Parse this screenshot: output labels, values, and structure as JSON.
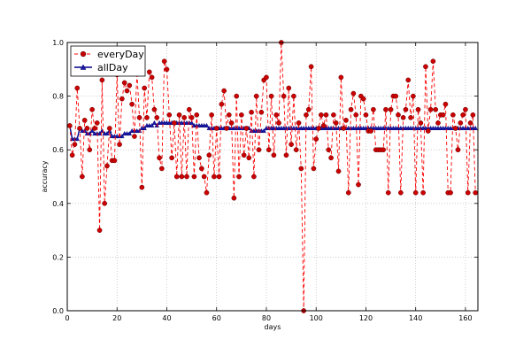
{
  "chart_data": {
    "type": "line",
    "title": "",
    "xlabel": "days",
    "ylabel": "accuracy",
    "xlim": [
      0,
      165
    ],
    "ylim": [
      0.0,
      1.0
    ],
    "xticks": [
      0,
      20,
      40,
      60,
      80,
      100,
      120,
      140,
      160
    ],
    "yticks": [
      0.0,
      0.2,
      0.4,
      0.6,
      0.8,
      1.0
    ],
    "xtick_labels": [
      "0",
      "20",
      "40",
      "60",
      "80",
      "100",
      "120",
      "140",
      "160"
    ],
    "ytick_labels": [
      "0.0",
      "0.2",
      "0.4",
      "0.6",
      "0.8",
      "1.0"
    ],
    "grid": true,
    "legend_position": "top-left",
    "series": [
      {
        "name": "everyDay",
        "color": "#ff0000",
        "marker": "circle",
        "line_style": "dashed",
        "x": [
          1,
          2,
          3,
          4,
          5,
          6,
          7,
          8,
          9,
          10,
          11,
          12,
          13,
          14,
          15,
          16,
          17,
          18,
          19,
          20,
          21,
          22,
          23,
          24,
          25,
          26,
          27,
          28,
          29,
          30,
          31,
          32,
          33,
          34,
          35,
          36,
          37,
          38,
          39,
          40,
          41,
          42,
          43,
          44,
          45,
          46,
          47,
          48,
          49,
          50,
          51,
          52,
          53,
          54,
          55,
          56,
          57,
          58,
          59,
          60,
          61,
          62,
          63,
          64,
          65,
          66,
          67,
          68,
          69,
          70,
          71,
          72,
          73,
          74,
          75,
          76,
          77,
          78,
          79,
          80,
          81,
          82,
          83,
          84,
          85,
          86,
          87,
          88,
          89,
          90,
          91,
          92,
          93,
          94,
          95,
          96,
          97,
          98,
          99,
          100,
          101,
          102,
          103,
          104,
          105,
          106,
          107,
          108,
          109,
          110,
          111,
          112,
          113,
          114,
          115,
          116,
          117,
          118,
          119,
          120,
          121,
          122,
          123,
          124,
          125,
          126,
          127,
          128,
          129,
          130,
          131,
          132,
          133,
          134,
          135,
          136,
          137,
          138,
          139,
          140,
          141,
          142,
          143,
          144,
          145,
          146,
          147,
          148,
          149,
          150,
          151,
          152,
          153,
          154,
          155,
          156,
          157,
          158,
          159,
          160,
          161,
          162,
          163,
          164
        ],
        "y": [
          0.69,
          0.58,
          0.62,
          0.83,
          0.68,
          0.5,
          0.71,
          0.68,
          0.6,
          0.75,
          0.68,
          0.7,
          0.3,
          0.86,
          0.4,
          0.54,
          0.68,
          0.56,
          0.56,
          0.88,
          0.62,
          0.79,
          0.85,
          0.82,
          0.84,
          0.77,
          0.65,
          0.89,
          0.72,
          0.46,
          0.83,
          0.72,
          0.89,
          0.87,
          0.75,
          0.72,
          0.57,
          0.53,
          0.93,
          0.9,
          0.73,
          0.57,
          0.7,
          0.5,
          0.73,
          0.5,
          0.72,
          0.5,
          0.75,
          0.72,
          0.5,
          0.73,
          0.57,
          0.53,
          0.5,
          0.44,
          0.58,
          0.73,
          0.5,
          0.68,
          0.5,
          0.77,
          0.82,
          0.68,
          0.73,
          0.7,
          0.42,
          0.8,
          0.5,
          0.73,
          0.58,
          0.68,
          0.57,
          0.74,
          0.5,
          0.8,
          0.6,
          0.74,
          0.86,
          0.87,
          0.6,
          0.8,
          0.58,
          0.73,
          0.7,
          1.0,
          0.8,
          0.58,
          0.83,
          0.62,
          0.8,
          0.6,
          0.7,
          0.53,
          0.0,
          0.73,
          0.75,
          0.91,
          0.53,
          0.64,
          0.68,
          0.73,
          0.69,
          0.73,
          0.6,
          0.57,
          0.73,
          0.7,
          0.52,
          0.87,
          0.68,
          0.71,
          0.44,
          0.75,
          0.81,
          0.73,
          0.47,
          0.8,
          0.79,
          0.73,
          0.67,
          0.67,
          0.75,
          0.6,
          0.6,
          0.6,
          0.6,
          0.75,
          0.44,
          0.75,
          0.8,
          0.8,
          0.73,
          0.44,
          0.72,
          0.75,
          0.86,
          0.72,
          0.8,
          0.44,
          0.75,
          0.7,
          0.44,
          0.91,
          0.67,
          0.75,
          0.93,
          0.75,
          0.7,
          0.73,
          0.73,
          0.77,
          0.44,
          0.44,
          0.73,
          0.68,
          0.6,
          0.7,
          0.73,
          0.75,
          0.44,
          0.7,
          0.73,
          0.44
        ]
      },
      {
        "name": "allDay",
        "color": "#00008b",
        "marker": "triangle",
        "line_style": "solid",
        "x": [
          1,
          2,
          3,
          4,
          5,
          6,
          7,
          8,
          9,
          10,
          11,
          12,
          13,
          14,
          15,
          16,
          17,
          18,
          19,
          20,
          21,
          22,
          23,
          24,
          25,
          26,
          27,
          28,
          29,
          30,
          31,
          32,
          33,
          34,
          35,
          36,
          37,
          38,
          39,
          40,
          41,
          42,
          43,
          44,
          45,
          46,
          47,
          48,
          49,
          50,
          51,
          52,
          53,
          54,
          55,
          56,
          57,
          58,
          59,
          60,
          61,
          62,
          63,
          64,
          65,
          66,
          67,
          68,
          69,
          70,
          71,
          72,
          73,
          74,
          75,
          76,
          77,
          78,
          79,
          80,
          81,
          82,
          83,
          84,
          85,
          86,
          87,
          88,
          89,
          90,
          91,
          92,
          93,
          94,
          95,
          96,
          97,
          98,
          99,
          100,
          101,
          102,
          103,
          104,
          105,
          106,
          107,
          108,
          109,
          110,
          111,
          112,
          113,
          114,
          115,
          116,
          117,
          118,
          119,
          120,
          121,
          122,
          123,
          124,
          125,
          126,
          127,
          128,
          129,
          130,
          131,
          132,
          133,
          134,
          135,
          136,
          137,
          138,
          139,
          140,
          141,
          142,
          143,
          144,
          145,
          146,
          147,
          148,
          149,
          150,
          151,
          152,
          153,
          154,
          155,
          156,
          157,
          158,
          159,
          160,
          161,
          162,
          163,
          164
        ],
        "y": [
          0.69,
          0.64,
          0.64,
          0.64,
          0.68,
          0.67,
          0.67,
          0.66,
          0.66,
          0.67,
          0.66,
          0.66,
          0.66,
          0.67,
          0.66,
          0.66,
          0.67,
          0.65,
          0.65,
          0.65,
          0.65,
          0.65,
          0.66,
          0.66,
          0.66,
          0.67,
          0.67,
          0.67,
          0.67,
          0.68,
          0.68,
          0.69,
          0.69,
          0.69,
          0.7,
          0.69,
          0.7,
          0.7,
          0.7,
          0.7,
          0.7,
          0.7,
          0.7,
          0.7,
          0.7,
          0.7,
          0.7,
          0.7,
          0.7,
          0.7,
          0.69,
          0.69,
          0.69,
          0.69,
          0.69,
          0.69,
          0.68,
          0.68,
          0.68,
          0.68,
          0.68,
          0.68,
          0.68,
          0.68,
          0.68,
          0.68,
          0.68,
          0.68,
          0.68,
          0.68,
          0.68,
          0.68,
          0.68,
          0.67,
          0.67,
          0.67,
          0.67,
          0.67,
          0.67,
          0.68,
          0.68,
          0.68,
          0.68,
          0.68,
          0.68,
          0.68,
          0.68,
          0.68,
          0.68,
          0.68,
          0.68,
          0.68,
          0.68,
          0.68,
          0.68,
          0.68,
          0.68,
          0.68,
          0.68,
          0.68,
          0.68,
          0.68,
          0.68,
          0.68,
          0.68,
          0.68,
          0.68,
          0.68,
          0.68,
          0.68,
          0.68,
          0.68,
          0.68,
          0.68,
          0.68,
          0.68,
          0.68,
          0.68,
          0.68,
          0.68,
          0.68,
          0.68,
          0.68,
          0.68,
          0.68,
          0.68,
          0.68,
          0.68,
          0.68,
          0.68,
          0.68,
          0.68,
          0.68,
          0.68,
          0.68,
          0.68,
          0.68,
          0.68,
          0.68,
          0.68,
          0.68,
          0.68,
          0.68,
          0.68,
          0.68,
          0.68,
          0.68,
          0.68,
          0.68,
          0.68,
          0.68,
          0.68,
          0.68,
          0.68,
          0.68,
          0.68,
          0.68,
          0.68,
          0.68,
          0.68,
          0.68,
          0.68,
          0.68,
          0.68
        ]
      }
    ]
  }
}
